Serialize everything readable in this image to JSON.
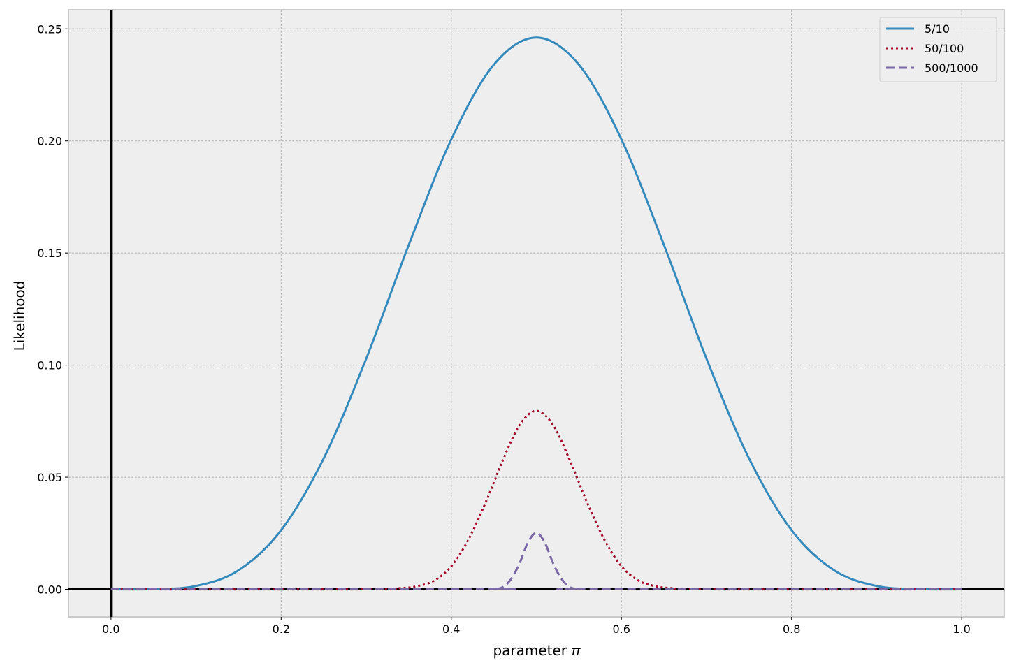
{
  "chart_data": {
    "type": "line",
    "title": "",
    "xlabel": "parameter ",
    "xlabel_symbol": "π",
    "ylabel": "Likelihood",
    "xlim": [
      -0.05,
      1.05
    ],
    "ylim": [
      -0.0123,
      0.2585
    ],
    "x_ticks": [
      0.0,
      0.2,
      0.4,
      0.6,
      0.8,
      1.0
    ],
    "x_tick_labels": [
      "0.0",
      "0.2",
      "0.4",
      "0.6",
      "0.8",
      "1.0"
    ],
    "y_ticks": [
      0.0,
      0.05,
      0.1,
      0.15,
      0.2,
      0.25
    ],
    "y_tick_labels": [
      "0.00",
      "0.05",
      "0.10",
      "0.15",
      "0.20",
      "0.25"
    ],
    "grid": true,
    "reference_lines": {
      "x": 0,
      "y": 0
    },
    "legend_position": "top-right",
    "background_color": "#eeeeee",
    "series": [
      {
        "name": "5/10",
        "color": "#348abd",
        "style": "solid",
        "x": [
          0.0,
          0.05,
          0.1,
          0.15,
          0.2,
          0.25,
          0.3,
          0.35,
          0.4,
          0.45,
          0.5,
          0.55,
          0.6,
          0.65,
          0.7,
          0.75,
          0.8,
          0.85,
          0.9,
          0.95,
          1.0
        ],
        "y": [
          0.0,
          0.0001,
          0.0015,
          0.0085,
          0.0264,
          0.0584,
          0.1029,
          0.1536,
          0.2007,
          0.234,
          0.2461,
          0.234,
          0.2007,
          0.1536,
          0.1029,
          0.0584,
          0.0264,
          0.0085,
          0.0015,
          0.0001,
          0.0
        ]
      },
      {
        "name": "50/100",
        "color": "#a60628",
        "style": "dotted",
        "x": [
          0.0,
          0.3,
          0.34,
          0.36,
          0.38,
          0.4,
          0.42,
          0.44,
          0.46,
          0.48,
          0.5,
          0.52,
          0.54,
          0.56,
          0.58,
          0.6,
          0.62,
          0.64,
          0.66,
          0.7,
          1.0
        ],
        "y": [
          0.0,
          0.0,
          0.0005,
          0.0014,
          0.0039,
          0.0103,
          0.0221,
          0.0384,
          0.057,
          0.0731,
          0.0796,
          0.0731,
          0.057,
          0.0384,
          0.0221,
          0.0103,
          0.0039,
          0.0014,
          0.0005,
          0.0,
          0.0
        ]
      },
      {
        "name": "500/1000",
        "color": "#7a68a6",
        "style": "dashed",
        "x": [
          0.0,
          0.44,
          0.45,
          0.46,
          0.47,
          0.48,
          0.49,
          0.5,
          0.51,
          0.52,
          0.53,
          0.54,
          0.55,
          0.56,
          1.0
        ],
        "y": [
          0.0,
          0.0,
          0.0001,
          0.0009,
          0.0044,
          0.0114,
          0.0208,
          0.0252,
          0.0208,
          0.0114,
          0.0044,
          0.0009,
          0.0001,
          0.0,
          0.0
        ]
      }
    ]
  }
}
